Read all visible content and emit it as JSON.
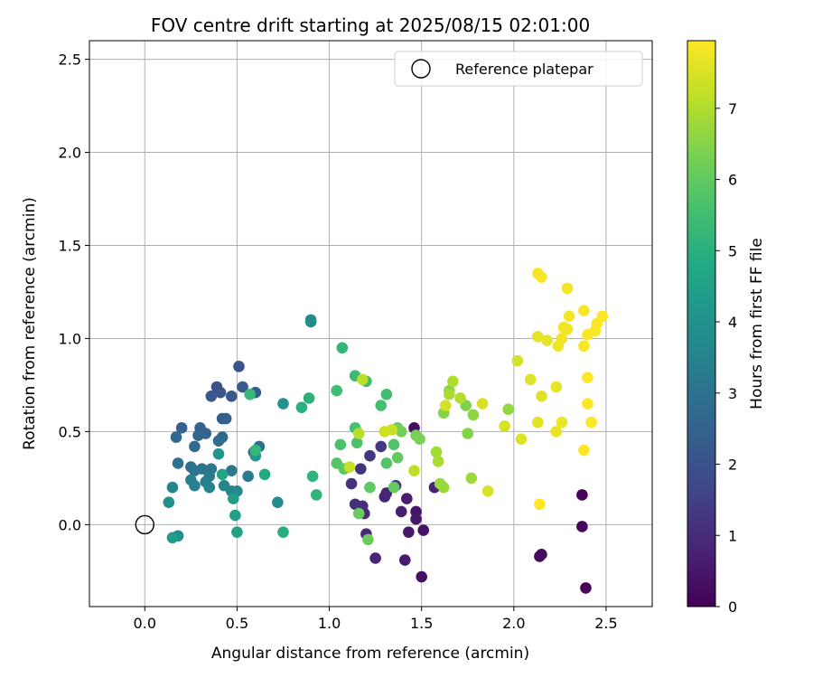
{
  "chart_data": {
    "type": "scatter",
    "title": "FOV centre drift starting at 2025/08/15 02:01:00",
    "xlabel": "Angular distance from reference (arcmin)",
    "ylabel": "Rotation from reference (arcmin)",
    "xlim": [
      -0.3,
      2.75
    ],
    "ylim": [
      -0.44,
      2.6
    ],
    "xticks": [
      "0.0",
      "0.5",
      "1.0",
      "1.5",
      "2.0",
      "2.5"
    ],
    "xtick_values": [
      0,
      0.5,
      1.0,
      1.5,
      2.0,
      2.5
    ],
    "yticks": [
      "0.0",
      "0.5",
      "1.0",
      "1.5",
      "2.0",
      "2.5"
    ],
    "ytick_values": [
      0,
      0.5,
      1.0,
      1.5,
      2.0,
      2.5
    ],
    "grid": true,
    "legend": {
      "placement": "top-right",
      "entries": [
        "Reference platepar"
      ]
    },
    "reference_point": {
      "x": 0,
      "y": 0
    },
    "colorbar": {
      "label": "Hours from first FF file",
      "colormap": "viridis",
      "range": [
        0,
        7.95
      ],
      "ticks": [
        "0",
        "1",
        "2",
        "3",
        "4",
        "5",
        "6",
        "7"
      ],
      "tick_values": [
        0,
        1,
        2,
        3,
        4,
        5,
        6,
        7
      ]
    },
    "points": [
      {
        "x": 2.39,
        "y": -0.34,
        "h": 0.05
      },
      {
        "x": 2.37,
        "y": 0.16,
        "h": 0.1
      },
      {
        "x": 2.37,
        "y": -0.01,
        "h": 0.15
      },
      {
        "x": 2.14,
        "y": -0.17,
        "h": 0.2
      },
      {
        "x": 2.15,
        "y": -0.16,
        "h": 0.25
      },
      {
        "x": 1.46,
        "y": 0.52,
        "h": 0.3
      },
      {
        "x": 1.5,
        "y": -0.28,
        "h": 0.35
      },
      {
        "x": 1.51,
        "y": -0.03,
        "h": 0.4
      },
      {
        "x": 1.47,
        "y": 0.07,
        "h": 0.45
      },
      {
        "x": 1.47,
        "y": 0.03,
        "h": 0.5
      },
      {
        "x": 1.43,
        "y": -0.04,
        "h": 0.55
      },
      {
        "x": 1.41,
        "y": -0.19,
        "h": 0.6
      },
      {
        "x": 1.42,
        "y": 0.14,
        "h": 0.65
      },
      {
        "x": 1.39,
        "y": 0.07,
        "h": 0.7
      },
      {
        "x": 1.57,
        "y": 0.2,
        "h": 0.75
      },
      {
        "x": 1.31,
        "y": 0.17,
        "h": 0.8
      },
      {
        "x": 1.3,
        "y": 0.15,
        "h": 0.85
      },
      {
        "x": 1.25,
        "y": -0.18,
        "h": 0.9
      },
      {
        "x": 1.2,
        "y": -0.05,
        "h": 0.95
      },
      {
        "x": 1.19,
        "y": 0.06,
        "h": 1.0
      },
      {
        "x": 1.18,
        "y": 0.1,
        "h": 1.05
      },
      {
        "x": 1.14,
        "y": 0.11,
        "h": 1.1
      },
      {
        "x": 1.12,
        "y": 0.22,
        "h": 1.15
      },
      {
        "x": 1.17,
        "y": 0.3,
        "h": 1.2
      },
      {
        "x": 1.22,
        "y": 0.37,
        "h": 1.25
      },
      {
        "x": 1.28,
        "y": 0.42,
        "h": 1.3
      },
      {
        "x": 1.36,
        "y": 0.21,
        "h": 1.35
      },
      {
        "x": 0.51,
        "y": 0.85,
        "h": 2.0
      },
      {
        "x": 0.39,
        "y": 0.74,
        "h": 2.05
      },
      {
        "x": 0.41,
        "y": 0.71,
        "h": 2.1
      },
      {
        "x": 0.47,
        "y": 0.69,
        "h": 2.15
      },
      {
        "x": 0.36,
        "y": 0.69,
        "h": 2.2
      },
      {
        "x": 0.53,
        "y": 0.74,
        "h": 2.25
      },
      {
        "x": 0.6,
        "y": 0.71,
        "h": 2.3
      },
      {
        "x": 0.42,
        "y": 0.57,
        "h": 2.35
      },
      {
        "x": 0.44,
        "y": 0.57,
        "h": 2.4
      },
      {
        "x": 0.2,
        "y": 0.52,
        "h": 2.45
      },
      {
        "x": 0.3,
        "y": 0.52,
        "h": 2.5
      },
      {
        "x": 0.33,
        "y": 0.49,
        "h": 2.55
      },
      {
        "x": 0.29,
        "y": 0.48,
        "h": 2.6
      },
      {
        "x": 0.17,
        "y": 0.47,
        "h": 2.65
      },
      {
        "x": 0.42,
        "y": 0.47,
        "h": 2.7
      },
      {
        "x": 0.4,
        "y": 0.45,
        "h": 2.75
      },
      {
        "x": 0.27,
        "y": 0.42,
        "h": 2.8
      },
      {
        "x": 0.62,
        "y": 0.42,
        "h": 2.85
      },
      {
        "x": 0.59,
        "y": 0.39,
        "h": 2.9
      },
      {
        "x": 0.18,
        "y": 0.33,
        "h": 2.95
      },
      {
        "x": 0.25,
        "y": 0.31,
        "h": 3.0
      },
      {
        "x": 0.27,
        "y": 0.29,
        "h": 3.05
      },
      {
        "x": 0.31,
        "y": 0.3,
        "h": 3.1
      },
      {
        "x": 0.36,
        "y": 0.3,
        "h": 3.15
      },
      {
        "x": 0.47,
        "y": 0.29,
        "h": 3.2
      },
      {
        "x": 0.35,
        "y": 0.26,
        "h": 3.25
      },
      {
        "x": 0.56,
        "y": 0.26,
        "h": 3.3
      },
      {
        "x": 0.33,
        "y": 0.23,
        "h": 3.35
      },
      {
        "x": 0.25,
        "y": 0.24,
        "h": 3.4
      },
      {
        "x": 0.27,
        "y": 0.21,
        "h": 3.45
      },
      {
        "x": 0.35,
        "y": 0.2,
        "h": 3.5
      },
      {
        "x": 0.43,
        "y": 0.21,
        "h": 3.55
      },
      {
        "x": 0.15,
        "y": 0.2,
        "h": 3.6
      },
      {
        "x": 0.47,
        "y": 0.18,
        "h": 3.65
      },
      {
        "x": 0.5,
        "y": 0.18,
        "h": 3.7
      },
      {
        "x": 0.72,
        "y": 0.12,
        "h": 3.75
      },
      {
        "x": 0.9,
        "y": 1.09,
        "h": 3.8
      },
      {
        "x": 0.9,
        "y": 1.1,
        "h": 3.85
      },
      {
        "x": 0.13,
        "y": 0.12,
        "h": 3.9
      },
      {
        "x": 0.18,
        "y": -0.06,
        "h": 3.95
      },
      {
        "x": 0.75,
        "y": 0.65,
        "h": 4.0
      },
      {
        "x": 0.4,
        "y": 0.38,
        "h": 4.1
      },
      {
        "x": 0.6,
        "y": 0.37,
        "h": 4.2
      },
      {
        "x": 0.15,
        "y": -0.07,
        "h": 4.3
      },
      {
        "x": 0.48,
        "y": 0.14,
        "h": 4.4
      },
      {
        "x": 0.49,
        "y": 0.05,
        "h": 4.5
      },
      {
        "x": 0.5,
        "y": -0.04,
        "h": 4.6
      },
      {
        "x": 0.42,
        "y": 0.27,
        "h": 4.7
      },
      {
        "x": 0.65,
        "y": 0.27,
        "h": 4.8
      },
      {
        "x": 0.75,
        "y": -0.04,
        "h": 4.9
      },
      {
        "x": 0.85,
        "y": 0.63,
        "h": 5.0
      },
      {
        "x": 0.89,
        "y": 0.68,
        "h": 5.05
      },
      {
        "x": 0.91,
        "y": 0.26,
        "h": 5.1
      },
      {
        "x": 0.93,
        "y": 0.16,
        "h": 5.15
      },
      {
        "x": 1.07,
        "y": 0.95,
        "h": 5.2
      },
      {
        "x": 0.6,
        "y": 0.4,
        "h": 5.25
      },
      {
        "x": 0.57,
        "y": 0.7,
        "h": 5.3
      },
      {
        "x": 1.14,
        "y": 0.8,
        "h": 5.35
      },
      {
        "x": 1.2,
        "y": 0.77,
        "h": 5.4
      },
      {
        "x": 1.04,
        "y": 0.72,
        "h": 5.45
      },
      {
        "x": 1.31,
        "y": 0.7,
        "h": 5.5
      },
      {
        "x": 1.28,
        "y": 0.64,
        "h": 5.55
      },
      {
        "x": 1.14,
        "y": 0.52,
        "h": 5.6
      },
      {
        "x": 1.06,
        "y": 0.43,
        "h": 5.65
      },
      {
        "x": 1.15,
        "y": 0.44,
        "h": 5.7
      },
      {
        "x": 1.35,
        "y": 0.43,
        "h": 5.75
      },
      {
        "x": 1.31,
        "y": 0.33,
        "h": 5.8
      },
      {
        "x": 1.04,
        "y": 0.33,
        "h": 5.85
      },
      {
        "x": 1.08,
        "y": 0.3,
        "h": 5.9
      },
      {
        "x": 1.22,
        "y": 0.2,
        "h": 5.95
      },
      {
        "x": 1.37,
        "y": 0.36,
        "h": 6.0
      },
      {
        "x": 1.35,
        "y": 0.2,
        "h": 6.05
      },
      {
        "x": 1.16,
        "y": 0.06,
        "h": 6.1
      },
      {
        "x": 1.21,
        "y": -0.08,
        "h": 6.15
      },
      {
        "x": 1.37,
        "y": 0.52,
        "h": 6.2
      },
      {
        "x": 1.39,
        "y": 0.5,
        "h": 6.25
      },
      {
        "x": 1.47,
        "y": 0.48,
        "h": 6.3
      },
      {
        "x": 1.49,
        "y": 0.46,
        "h": 6.35
      },
      {
        "x": 1.74,
        "y": 0.64,
        "h": 6.4
      },
      {
        "x": 1.75,
        "y": 0.49,
        "h": 6.45
      },
      {
        "x": 1.62,
        "y": 0.6,
        "h": 6.5
      },
      {
        "x": 1.65,
        "y": 0.72,
        "h": 6.55
      },
      {
        "x": 1.78,
        "y": 0.59,
        "h": 6.6
      },
      {
        "x": 1.97,
        "y": 0.62,
        "h": 6.65
      },
      {
        "x": 1.6,
        "y": 0.22,
        "h": 6.7
      },
      {
        "x": 1.62,
        "y": 0.2,
        "h": 6.75
      },
      {
        "x": 1.77,
        "y": 0.25,
        "h": 6.8
      },
      {
        "x": 1.58,
        "y": 0.39,
        "h": 6.85
      },
      {
        "x": 1.59,
        "y": 0.34,
        "h": 6.9
      },
      {
        "x": 1.65,
        "y": 0.7,
        "h": 6.95
      },
      {
        "x": 1.67,
        "y": 0.77,
        "h": 7.0
      },
      {
        "x": 1.71,
        "y": 0.68,
        "h": 7.05
      },
      {
        "x": 1.16,
        "y": 0.49,
        "h": 7.1
      },
      {
        "x": 1.18,
        "y": 0.78,
        "h": 7.15
      },
      {
        "x": 1.46,
        "y": 0.29,
        "h": 7.2
      },
      {
        "x": 1.34,
        "y": 0.51,
        "h": 7.25
      },
      {
        "x": 1.11,
        "y": 0.31,
        "h": 7.3
      },
      {
        "x": 1.3,
        "y": 0.5,
        "h": 7.35
      },
      {
        "x": 1.63,
        "y": 0.64,
        "h": 7.4
      },
      {
        "x": 2.02,
        "y": 0.88,
        "h": 7.42
      },
      {
        "x": 1.95,
        "y": 0.53,
        "h": 7.45
      },
      {
        "x": 1.83,
        "y": 0.65,
        "h": 7.48
      },
      {
        "x": 1.86,
        "y": 0.18,
        "h": 7.5
      },
      {
        "x": 2.04,
        "y": 0.46,
        "h": 7.52
      },
      {
        "x": 2.09,
        "y": 0.78,
        "h": 7.55
      },
      {
        "x": 2.15,
        "y": 0.69,
        "h": 7.58
      },
      {
        "x": 2.13,
        "y": 0.55,
        "h": 7.6
      },
      {
        "x": 2.13,
        "y": 1.01,
        "h": 7.62
      },
      {
        "x": 2.18,
        "y": 0.99,
        "h": 7.65
      },
      {
        "x": 2.23,
        "y": 0.74,
        "h": 7.67
      },
      {
        "x": 2.23,
        "y": 0.5,
        "h": 7.7
      },
      {
        "x": 2.26,
        "y": 0.55,
        "h": 7.72
      },
      {
        "x": 2.27,
        "y": 1.06,
        "h": 7.74
      },
      {
        "x": 2.24,
        "y": 0.96,
        "h": 7.76
      },
      {
        "x": 2.26,
        "y": 1.0,
        "h": 7.78
      },
      {
        "x": 2.29,
        "y": 1.05,
        "h": 7.8
      },
      {
        "x": 2.3,
        "y": 1.12,
        "h": 7.82
      },
      {
        "x": 2.29,
        "y": 1.27,
        "h": 7.84
      },
      {
        "x": 2.15,
        "y": 1.33,
        "h": 7.86
      },
      {
        "x": 2.13,
        "y": 1.35,
        "h": 7.87
      },
      {
        "x": 2.38,
        "y": 1.15,
        "h": 7.88
      },
      {
        "x": 2.38,
        "y": 0.96,
        "h": 7.89
      },
      {
        "x": 2.4,
        "y": 1.02,
        "h": 7.9
      },
      {
        "x": 2.44,
        "y": 1.04,
        "h": 7.91
      },
      {
        "x": 2.45,
        "y": 1.08,
        "h": 7.92
      },
      {
        "x": 2.48,
        "y": 1.12,
        "h": 7.93
      },
      {
        "x": 2.4,
        "y": 0.79,
        "h": 7.94
      },
      {
        "x": 2.4,
        "y": 0.65,
        "h": 7.94
      },
      {
        "x": 2.42,
        "y": 0.55,
        "h": 7.95
      },
      {
        "x": 2.38,
        "y": 0.4,
        "h": 7.95
      },
      {
        "x": 2.14,
        "y": 0.11,
        "h": 7.95
      }
    ]
  }
}
